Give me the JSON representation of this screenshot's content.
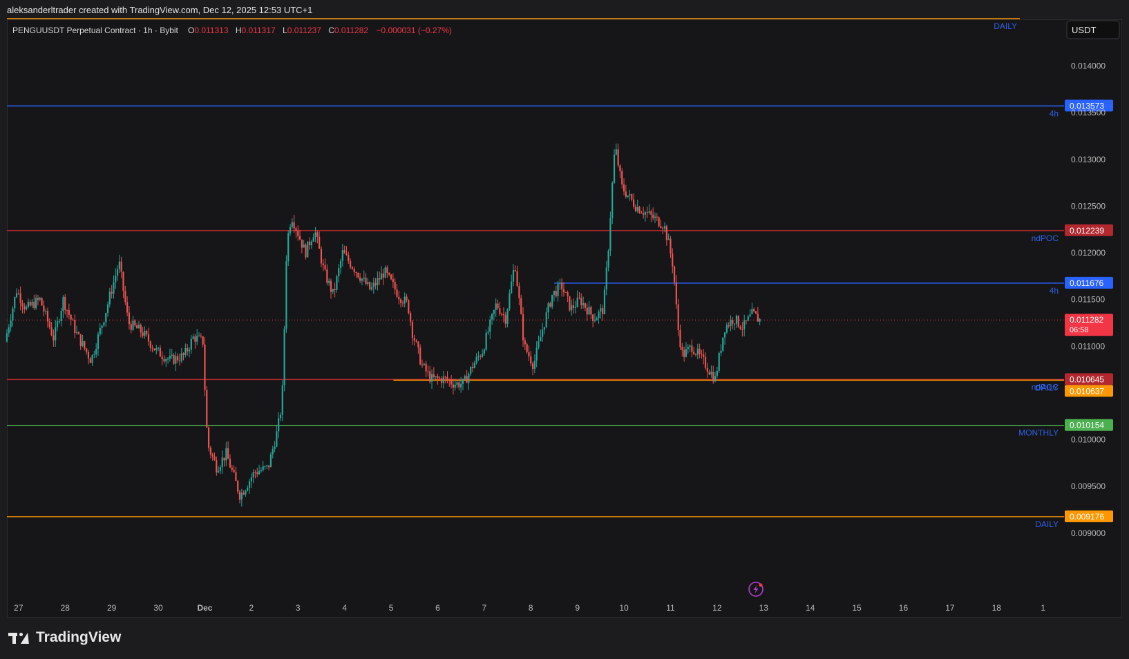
{
  "header": {
    "caption": "aleksanderltrader created with TradingView.com, Dec 12, 2025 12:53 UTC+1"
  },
  "legend": {
    "symbol": "PENGUUSDT Perpetual Contract · 1h · Bybit",
    "o_label": "O",
    "o_value": "0.011313",
    "h_label": "H",
    "h_value": "0.011317",
    "l_label": "L",
    "l_value": "0.011237",
    "c_label": "C",
    "c_value": "0.011282",
    "change": "−0.000031 (−0.27%)"
  },
  "currency_button": "USDT",
  "footer": {
    "brand": "TradingView"
  },
  "colors": {
    "up": "#26a69a",
    "down": "#ef5350",
    "blue": "#2962ff",
    "red_line": "#b2282e",
    "orange": "#ff9800",
    "green": "#4caf50",
    "label_blue": "#2d62e6"
  },
  "icons": {
    "lightning": "lightning-icon",
    "logo": "tradingview-logo-icon"
  },
  "chart_data": {
    "type": "candlestick",
    "y_ticks": [
      "0.014000",
      "0.013500",
      "0.013000",
      "0.012500",
      "0.012000",
      "0.011500",
      "0.011000",
      "0.010000",
      "0.009500",
      "0.009000"
    ],
    "y_tick_values": [
      0.014,
      0.0135,
      0.013,
      0.0125,
      0.012,
      0.0115,
      0.011,
      0.01,
      0.0095,
      0.009
    ],
    "ylim": [
      0.0082,
      0.0145
    ],
    "x_ticks": [
      "27",
      "28",
      "29",
      "30",
      "Dec",
      "2",
      "3",
      "4",
      "5",
      "6",
      "7",
      "8",
      "9",
      "10",
      "11",
      "12",
      "13",
      "14",
      "15",
      "16",
      "17",
      "18",
      "1"
    ],
    "x_tick_days": [
      0,
      1,
      2,
      3,
      4,
      5,
      6,
      7,
      8,
      9,
      10,
      11,
      12,
      13,
      14,
      15,
      16,
      17,
      18,
      19,
      20,
      21,
      22
    ],
    "xlim_days": [
      -0.25,
      22.45
    ],
    "day_start": "Nov 27",
    "levels": [
      {
        "price": 0.013573,
        "label": "0.013573",
        "tag": "4h",
        "color": "#2962ff",
        "start_day": -0.25
      },
      {
        "price": 0.012239,
        "label": "0.012239",
        "tag": "ndPOC",
        "color": "#b2282e",
        "start_day": -0.25
      },
      {
        "price": 0.011676,
        "label": "0.011676",
        "tag": "4h",
        "color": "#2962ff",
        "start_day": 11.5
      },
      {
        "price": 0.010645,
        "label": "0.010645",
        "tag": "ndPOC",
        "color": "#b2282e",
        "start_day": -0.25
      },
      {
        "price": 0.010637,
        "label": "0.010637",
        "tag": "DAILY",
        "color": "#ff9800",
        "start_day": 8.05
      },
      {
        "price": 0.010154,
        "label": "0.010154",
        "tag": "MONTHLY",
        "color": "#4caf50",
        "start_day": -0.25
      },
      {
        "price": 0.009176,
        "label": "0.009176",
        "tag": "DAILY",
        "color": "#ff9800",
        "start_day": -0.25
      }
    ],
    "top_level": {
      "price": 0.0145,
      "tag": "DAILY",
      "color": "#ff9800"
    },
    "last_price": {
      "price": 0.011282,
      "label": "0.011282",
      "countdown": "06:58",
      "color": "#f23645"
    },
    "path": [
      [
        -0.25,
        0.01105
      ],
      [
        0.0,
        0.0116
      ],
      [
        0.2,
        0.0114
      ],
      [
        0.5,
        0.0115
      ],
      [
        0.8,
        0.01108
      ],
      [
        1.0,
        0.0115
      ],
      [
        1.3,
        0.01112
      ],
      [
        1.6,
        0.01085
      ],
      [
        1.9,
        0.01135
      ],
      [
        2.2,
        0.0119
      ],
      [
        2.4,
        0.01125
      ],
      [
        2.7,
        0.01115
      ],
      [
        3.0,
        0.01095
      ],
      [
        3.3,
        0.01085
      ],
      [
        3.6,
        0.0109
      ],
      [
        3.8,
        0.0111
      ],
      [
        4.0,
        0.01105
      ],
      [
        4.05,
        0.01045
      ],
      [
        4.1,
        0.00995
      ],
      [
        4.3,
        0.0097
      ],
      [
        4.5,
        0.00985
      ],
      [
        4.8,
        0.0094
      ],
      [
        5.1,
        0.00965
      ],
      [
        5.4,
        0.0097
      ],
      [
        5.6,
        0.0101
      ],
      [
        5.7,
        0.0104
      ],
      [
        5.75,
        0.0112
      ],
      [
        5.8,
        0.0121
      ],
      [
        5.9,
        0.0124
      ],
      [
        6.2,
        0.012
      ],
      [
        6.4,
        0.01225
      ],
      [
        6.6,
        0.0118
      ],
      [
        6.8,
        0.01155
      ],
      [
        7.0,
        0.012
      ],
      [
        7.3,
        0.0118
      ],
      [
        7.6,
        0.0116
      ],
      [
        7.9,
        0.0118
      ],
      [
        8.2,
        0.01155
      ],
      [
        8.4,
        0.01145
      ],
      [
        8.5,
        0.01115
      ],
      [
        8.7,
        0.0108
      ],
      [
        8.9,
        0.01065
      ],
      [
        9.2,
        0.01065
      ],
      [
        9.4,
        0.0106
      ],
      [
        9.6,
        0.0106
      ],
      [
        9.8,
        0.0108
      ],
      [
        10.0,
        0.01095
      ],
      [
        10.3,
        0.01145
      ],
      [
        10.5,
        0.0113
      ],
      [
        10.7,
        0.0119
      ],
      [
        10.9,
        0.011
      ],
      [
        11.1,
        0.0108
      ],
      [
        11.3,
        0.0112
      ],
      [
        11.5,
        0.01155
      ],
      [
        11.7,
        0.01165
      ],
      [
        11.9,
        0.0114
      ],
      [
        12.1,
        0.0115
      ],
      [
        12.4,
        0.0113
      ],
      [
        12.6,
        0.0114
      ],
      [
        12.7,
        0.012
      ],
      [
        12.8,
        0.0128
      ],
      [
        12.85,
        0.01315
      ],
      [
        13.0,
        0.0127
      ],
      [
        13.3,
        0.0125
      ],
      [
        13.6,
        0.0124
      ],
      [
        13.9,
        0.0123
      ],
      [
        14.0,
        0.0121
      ],
      [
        14.1,
        0.01185
      ],
      [
        14.2,
        0.0112
      ],
      [
        14.3,
        0.0109
      ],
      [
        14.5,
        0.011
      ],
      [
        14.8,
        0.0108
      ],
      [
        15.0,
        0.01065
      ],
      [
        15.2,
        0.0112
      ],
      [
        15.4,
        0.0113
      ],
      [
        15.6,
        0.0112
      ],
      [
        15.8,
        0.01135
      ],
      [
        15.95,
        0.011282
      ]
    ]
  }
}
